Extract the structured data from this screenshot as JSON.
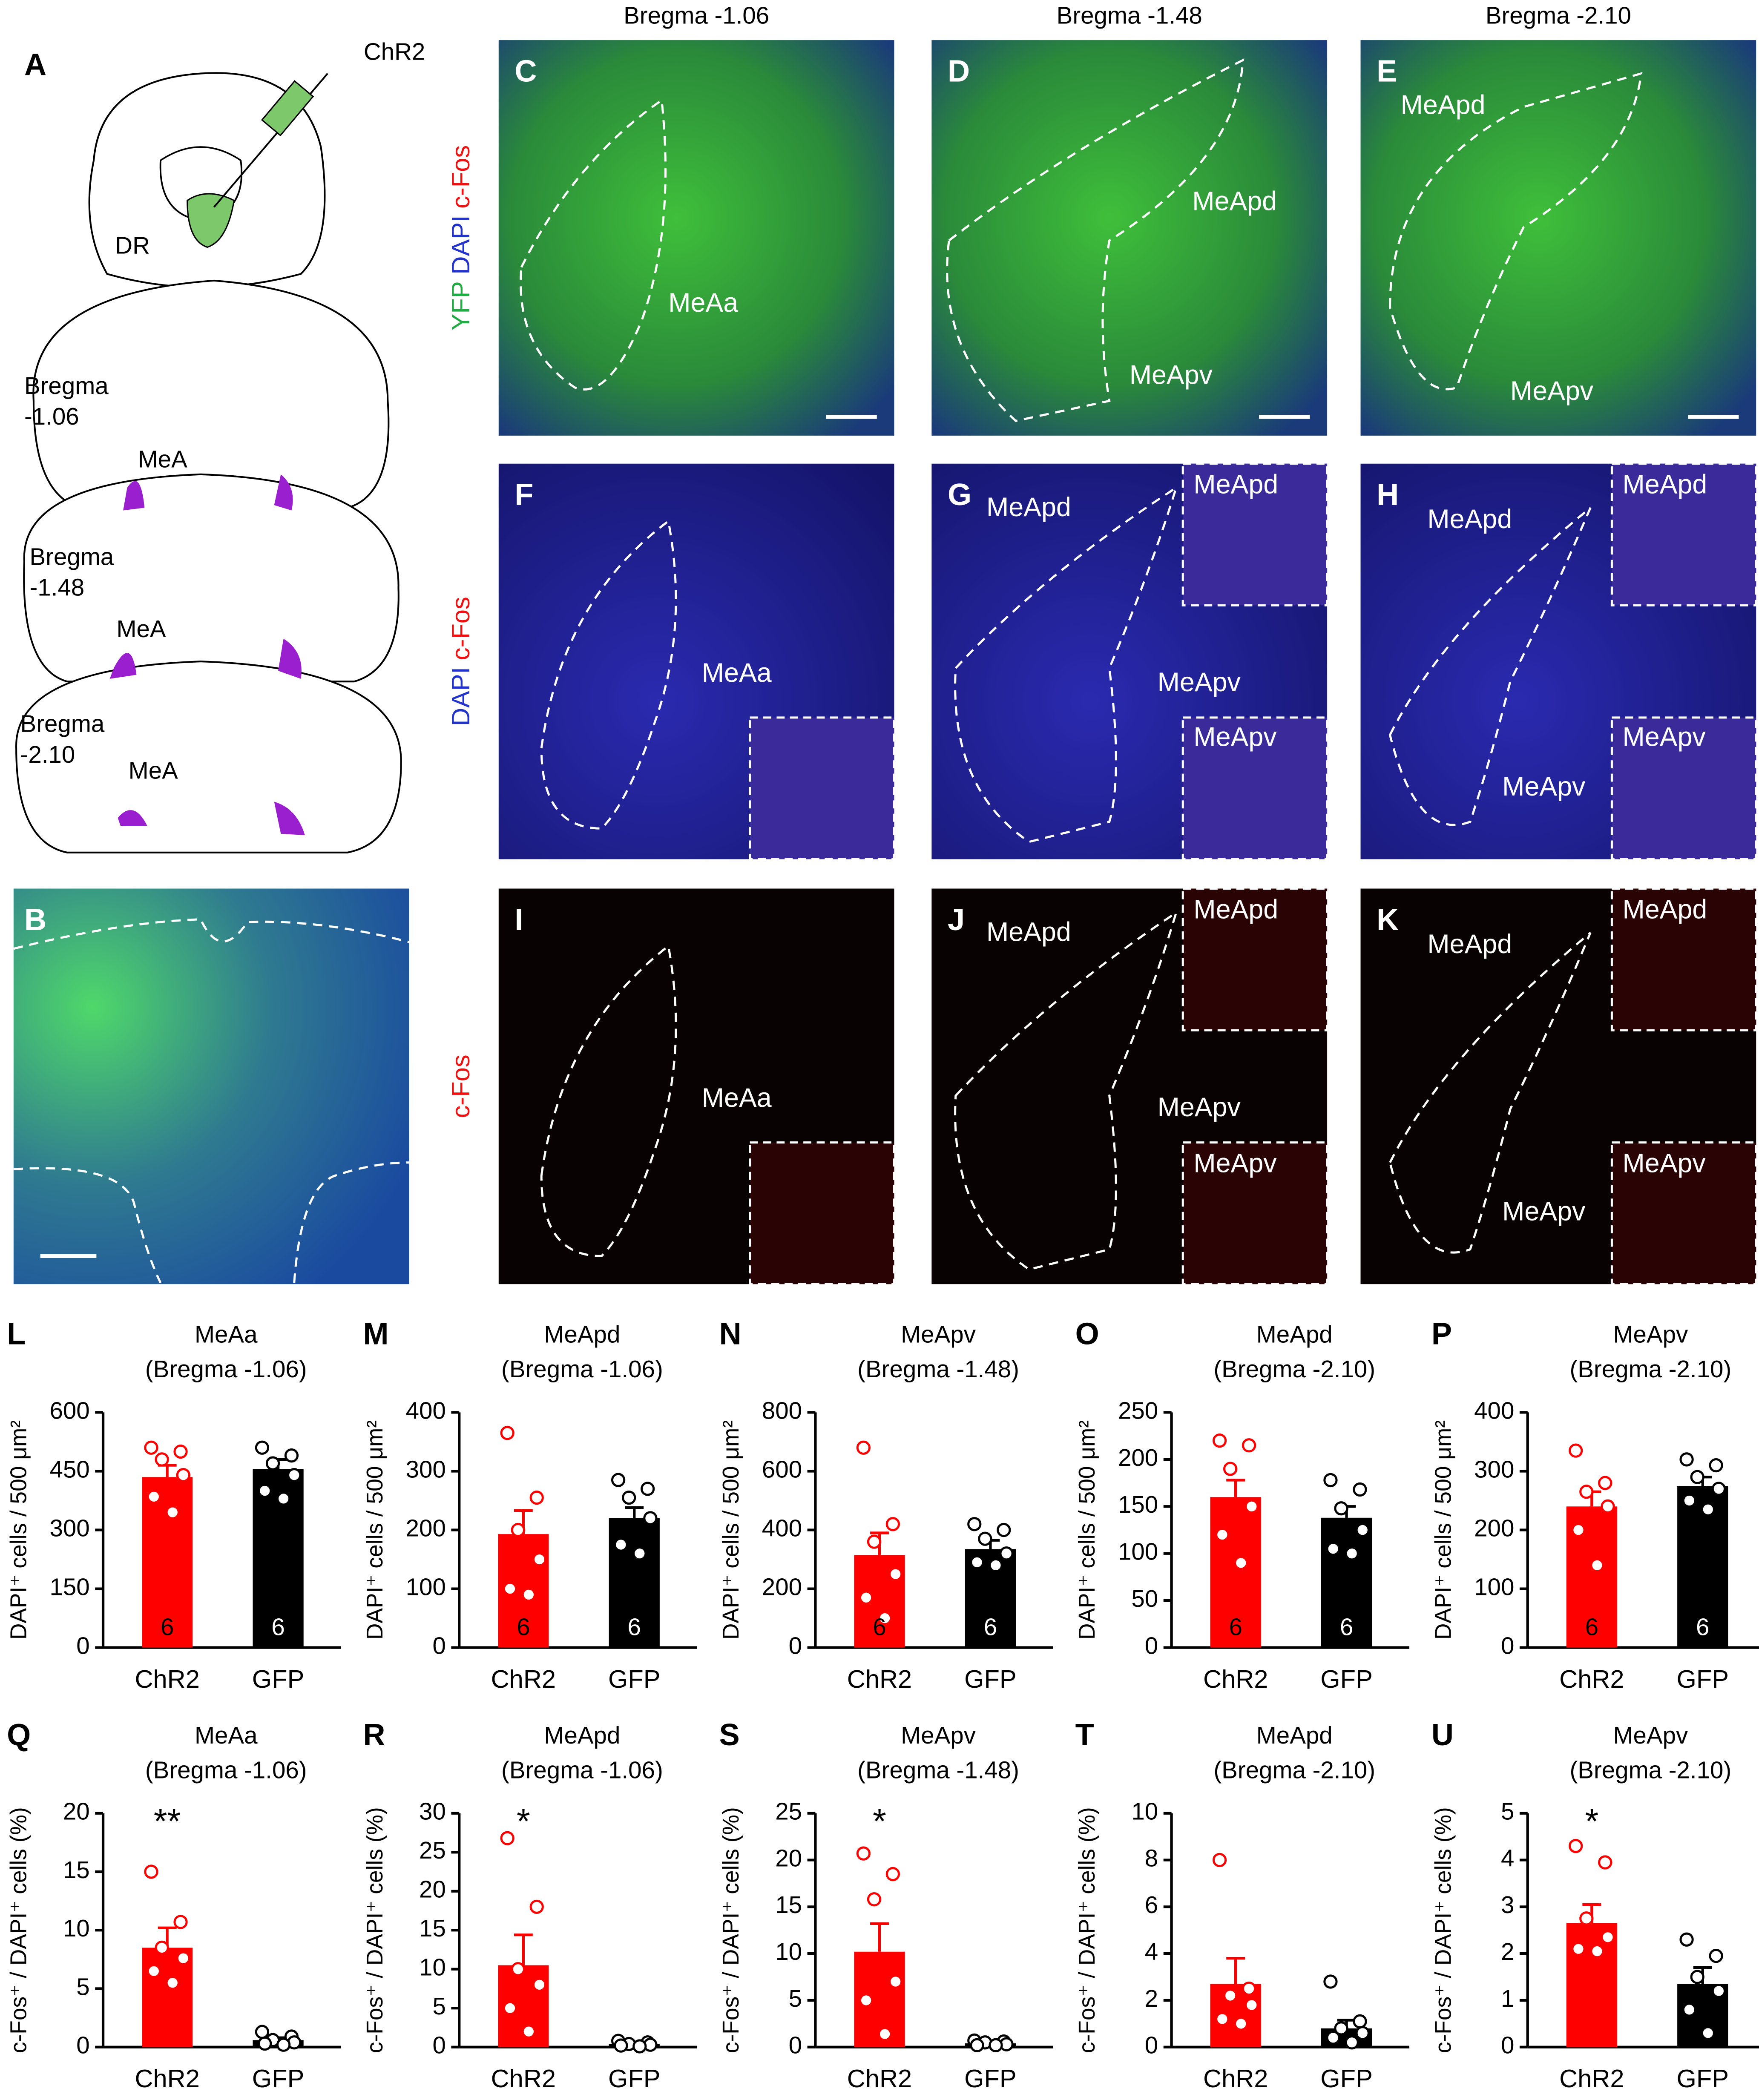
{
  "figure": {
    "column_headers": [
      "Bregma -1.06",
      "Bregma -1.48",
      "Bregma -2.10"
    ],
    "row_labels": [
      {
        "texts": [
          "YFP",
          "DAPI",
          "c-Fos"
        ],
        "colors": [
          "#22aa44",
          "#2233cc",
          "#ee1111"
        ]
      },
      {
        "texts": [
          "DAPI",
          "c-Fos"
        ],
        "colors": [
          "#2233cc",
          "#ee1111"
        ]
      },
      {
        "texts": [
          "c-Fos"
        ],
        "colors": [
          "#ee1111"
        ]
      }
    ],
    "schematic": {
      "letter": "A",
      "injection": "ChR2",
      "target": "DR",
      "sections": [
        {
          "label": [
            "Bregma",
            "-1.06"
          ],
          "region": "MeA"
        },
        {
          "label": [
            "Bregma",
            "-1.48"
          ],
          "region": "MeA"
        },
        {
          "label": [
            "Bregma",
            "-2.10"
          ],
          "region": "MeA"
        }
      ]
    },
    "panel_b": {
      "letter": "B"
    },
    "panels": [
      {
        "letter": "C",
        "labels": [
          "MeAa"
        ]
      },
      {
        "letter": "D",
        "labels": [
          "MeApd",
          "MeApv"
        ]
      },
      {
        "letter": "E",
        "labels": [
          "MeApd",
          "MeApv"
        ]
      },
      {
        "letter": "F",
        "labels": [
          "MeAa"
        ]
      },
      {
        "letter": "G",
        "labels": [
          "MeApd",
          "MeApv",
          "MeApd",
          "MeApv"
        ]
      },
      {
        "letter": "H",
        "labels": [
          "MeApd",
          "MeApv",
          "MeApd",
          "MeApv"
        ]
      },
      {
        "letter": "I",
        "labels": [
          "MeAa"
        ]
      },
      {
        "letter": "J",
        "labels": [
          "MeApd",
          "MeApv",
          "MeApd",
          "MeApv"
        ]
      },
      {
        "letter": "K",
        "labels": [
          "MeApd",
          "MeApv",
          "MeApd",
          "MeApv"
        ]
      }
    ]
  },
  "chart_data": [
    {
      "type": "bar",
      "panel": "L",
      "title": "MeAa",
      "subtitle": "(Bregma -1.06)",
      "ylabel": "DAPI⁺ cells / 500 μm²",
      "categories": [
        "ChR2",
        "GFP"
      ],
      "colors": [
        "#ff0000",
        "#000000"
      ],
      "values": [
        435,
        455
      ],
      "errors": [
        30,
        25
      ],
      "points": [
        [
          510,
          500,
          480,
          440,
          385,
          345
        ],
        [
          510,
          490,
          470,
          440,
          400,
          380
        ]
      ],
      "n_labels": [
        6,
        6
      ],
      "ylim": [
        0,
        600
      ],
      "yticks": [
        0,
        150,
        300,
        450,
        600
      ]
    },
    {
      "type": "bar",
      "panel": "M",
      "title": "MeApd",
      "subtitle": "(Bregma -1.06)",
      "ylabel": "DAPI⁺ cells / 500 μm²",
      "categories": [
        "ChR2",
        "GFP"
      ],
      "colors": [
        "#ff0000",
        "#000000"
      ],
      "values": [
        193,
        220
      ],
      "errors": [
        40,
        18
      ],
      "points": [
        [
          365,
          255,
          200,
          150,
          100,
          90
        ],
        [
          285,
          270,
          255,
          220,
          175,
          160
        ]
      ],
      "n_labels": [
        6,
        6
      ],
      "ylim": [
        0,
        400
      ],
      "yticks": [
        0,
        100,
        200,
        300,
        400
      ]
    },
    {
      "type": "bar",
      "panel": "N",
      "title": "MeApv",
      "subtitle": "(Bregma -1.48)",
      "ylabel": "DAPI⁺ cells / 500 μm²",
      "categories": [
        "ChR2",
        "GFP"
      ],
      "colors": [
        "#ff0000",
        "#000000"
      ],
      "values": [
        315,
        335
      ],
      "errors": [
        75,
        30
      ],
      "points": [
        [
          680,
          420,
          360,
          250,
          170,
          100
        ],
        [
          420,
          400,
          370,
          320,
          290,
          280
        ]
      ],
      "n_labels": [
        6,
        6
      ],
      "ylim": [
        0,
        800
      ],
      "yticks": [
        0,
        200,
        400,
        600,
        800
      ]
    },
    {
      "type": "bar",
      "panel": "O",
      "title": "MeApd",
      "subtitle": "(Bregma -2.10)",
      "ylabel": "DAPI⁺ cells / 500 μm²",
      "categories": [
        "ChR2",
        "GFP"
      ],
      "colors": [
        "#ff0000",
        "#000000"
      ],
      "values": [
        160,
        138
      ],
      "errors": [
        18,
        12
      ],
      "points": [
        [
          220,
          215,
          190,
          150,
          120,
          90
        ],
        [
          178,
          168,
          148,
          125,
          105,
          100
        ]
      ],
      "n_labels": [
        6,
        6
      ],
      "ylim": [
        0,
        250
      ],
      "yticks": [
        0,
        50,
        100,
        150,
        200,
        250
      ]
    },
    {
      "type": "bar",
      "panel": "P",
      "title": "MeApv",
      "subtitle": "(Bregma -2.10)",
      "ylabel": "DAPI⁺ cells / 500 μm²",
      "categories": [
        "ChR2",
        "GFP"
      ],
      "colors": [
        "#ff0000",
        "#000000"
      ],
      "values": [
        240,
        275
      ],
      "errors": [
        25,
        15
      ],
      "points": [
        [
          335,
          280,
          265,
          240,
          200,
          140
        ],
        [
          320,
          310,
          290,
          270,
          250,
          235
        ]
      ],
      "n_labels": [
        6,
        6
      ],
      "ylim": [
        0,
        400
      ],
      "yticks": [
        0,
        100,
        200,
        300,
        400
      ]
    },
    {
      "type": "bar",
      "panel": "Q",
      "title": "MeAa",
      "subtitle": "(Bregma -1.06)",
      "ylabel": "c-Fos⁺ / DAPI⁺ cells (%)",
      "categories": [
        "ChR2",
        "GFP"
      ],
      "colors": [
        "#ff0000",
        "#000000"
      ],
      "values": [
        8.5,
        0.6
      ],
      "errors": [
        1.7,
        0.2
      ],
      "points": [
        [
          15,
          10.7,
          8.5,
          7.6,
          6.5,
          5.5
        ],
        [
          1.3,
          0.9,
          0.6,
          0.4,
          0.3,
          0.2
        ]
      ],
      "significance": [
        "**",
        null
      ],
      "ylim": [
        0,
        20
      ],
      "yticks": [
        0,
        5,
        10,
        15,
        20
      ]
    },
    {
      "type": "bar",
      "panel": "R",
      "title": "MeApd",
      "subtitle": "(Bregma -1.06)",
      "ylabel": "c-Fos⁺ / DAPI⁺ cells (%)",
      "categories": [
        "ChR2",
        "GFP"
      ],
      "colors": [
        "#ff0000",
        "#000000"
      ],
      "values": [
        10.5,
        0.4
      ],
      "errors": [
        3.9,
        0.1
      ],
      "points": [
        [
          26.8,
          18,
          10,
          8,
          5,
          2
        ],
        [
          0.8,
          0.6,
          0.4,
          0.3,
          0.2,
          0.1
        ]
      ],
      "significance": [
        "*",
        null
      ],
      "ylim": [
        0,
        30
      ],
      "yticks": [
        0,
        5,
        10,
        15,
        20,
        25,
        30
      ]
    },
    {
      "type": "bar",
      "panel": "S",
      "title": "MeApv",
      "subtitle": "(Bregma -1.48)",
      "ylabel": "c-Fos⁺ / DAPI⁺ cells (%)",
      "categories": [
        "ChR2",
        "GFP"
      ],
      "colors": [
        "#ff0000",
        "#000000"
      ],
      "values": [
        10.2,
        0.4
      ],
      "errors": [
        3,
        0.1
      ],
      "points": [
        [
          20.7,
          18.5,
          15.8,
          7,
          5,
          1.4
        ],
        [
          0.7,
          0.6,
          0.5,
          0.3,
          0.2,
          0.2
        ]
      ],
      "significance": [
        "*",
        null
      ],
      "ylim": [
        0,
        25
      ],
      "yticks": [
        0,
        5,
        10,
        15,
        20,
        25
      ]
    },
    {
      "type": "bar",
      "panel": "T",
      "title": "MeApd",
      "subtitle": "(Bregma -2.10)",
      "ylabel": "c-Fos⁺ / DAPI⁺ cells (%)",
      "categories": [
        "ChR2",
        "GFP"
      ],
      "colors": [
        "#ff0000",
        "#000000"
      ],
      "values": [
        2.7,
        0.8
      ],
      "errors": [
        1.1,
        0.35
      ],
      "points": [
        [
          8,
          2.5,
          2.2,
          1.8,
          1.2,
          1
        ],
        [
          2.8,
          1.1,
          0.8,
          0.6,
          0.4,
          0.2
        ]
      ],
      "ylim": [
        0,
        10
      ],
      "yticks": [
        0,
        2,
        4,
        6,
        8,
        10
      ]
    },
    {
      "type": "bar",
      "panel": "U",
      "title": "MeApv",
      "subtitle": "(Bregma -2.10)",
      "ylabel": "c-Fos⁺ / DAPI⁺ cells (%)",
      "categories": [
        "ChR2",
        "GFP"
      ],
      "colors": [
        "#ff0000",
        "#000000"
      ],
      "values": [
        2.65,
        1.35
      ],
      "errors": [
        0.4,
        0.35
      ],
      "points": [
        [
          4.3,
          3.95,
          2.75,
          2.35,
          2.1,
          2.05
        ],
        [
          2.3,
          1.95,
          1.5,
          1.2,
          0.8,
          0.3
        ]
      ],
      "significance": [
        "*",
        null
      ],
      "ylim": [
        0,
        5
      ],
      "yticks": [
        0,
        1,
        2,
        3,
        4,
        5
      ]
    }
  ]
}
